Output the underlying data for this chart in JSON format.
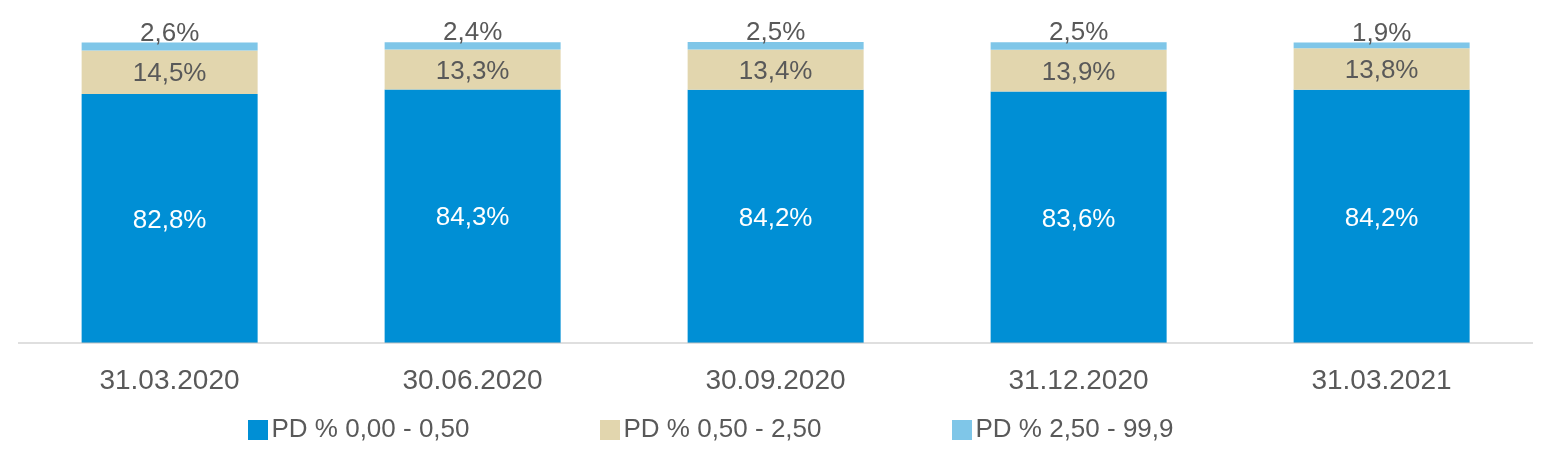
{
  "chart_data": {
    "type": "bar",
    "stacked": true,
    "categories": [
      "31.03.2020",
      "30.06.2020",
      "30.09.2020",
      "31.12.2020",
      "31.03.2021"
    ],
    "series": [
      {
        "name": "PD % 0,00 - 0,50",
        "color": "#008fd5",
        "values": [
          82.8,
          84.3,
          84.2,
          83.6,
          84.2
        ],
        "value_labels": [
          "82,8%",
          "84,3%",
          "84,2%",
          "83,6%",
          "84,2%"
        ]
      },
      {
        "name": "PD % 0,50 - 2,50",
        "color": "#e2d6ae",
        "values": [
          14.5,
          13.3,
          13.4,
          13.9,
          13.8
        ],
        "value_labels": [
          "14,5%",
          "13,3%",
          "13,4%",
          "13,9%",
          "13,8%"
        ]
      },
      {
        "name": "PD % 2,50 - 99,9",
        "color": "#7fc6e8",
        "values": [
          2.6,
          2.4,
          2.5,
          2.5,
          1.9
        ],
        "value_labels": [
          "2,6%",
          "2,4%",
          "2,5%",
          "2,5%",
          "1,9%"
        ]
      }
    ],
    "legend": "bottom",
    "grid": false
  }
}
